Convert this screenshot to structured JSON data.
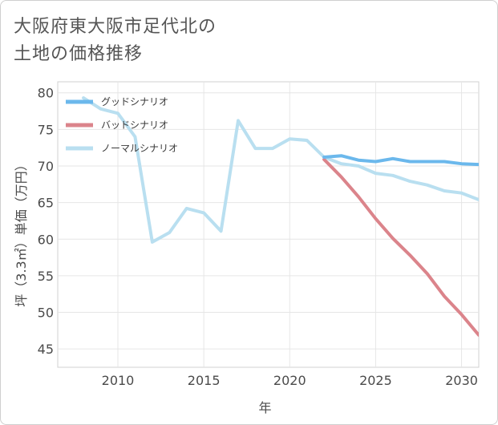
{
  "title_line1": "大阪府東大阪市足代北の",
  "title_line2": "土地の価格推移",
  "chart_data": {
    "type": "line",
    "xlabel": "年",
    "ylabel": "坪（3.3㎡）単価（万円）",
    "xlim": [
      2006.5,
      2031
    ],
    "ylim": [
      42.5,
      81.5
    ],
    "x_ticks": [
      2010,
      2015,
      2020,
      2025,
      2030
    ],
    "y_ticks": [
      45,
      50,
      55,
      60,
      65,
      70,
      75,
      80
    ],
    "legend_position": "top-left",
    "grid": true,
    "series": [
      {
        "name": "グッドシナリオ",
        "color": "#6bb8ec",
        "x": [
          2022,
          2023,
          2024,
          2025,
          2026,
          2027,
          2028,
          2029,
          2030,
          2031
        ],
        "y": [
          71.2,
          71.4,
          70.8,
          70.6,
          71.0,
          70.6,
          70.6,
          70.6,
          70.3,
          70.2
        ]
      },
      {
        "name": "バッドシナリオ",
        "color": "#db848b",
        "x": [
          2022,
          2023,
          2024,
          2025,
          2026,
          2027,
          2028,
          2029,
          2030,
          2031
        ],
        "y": [
          70.9,
          68.5,
          65.8,
          62.8,
          60.1,
          57.8,
          55.3,
          52.2,
          49.7,
          46.9
        ]
      },
      {
        "name": "ノーマルシナリオ",
        "color": "#b9dff0",
        "x": [
          2008,
          2009,
          2010,
          2011,
          2012,
          2013,
          2014,
          2015,
          2016,
          2017,
          2018,
          2019,
          2020,
          2021,
          2022,
          2023,
          2024,
          2025,
          2026,
          2027,
          2028,
          2029,
          2030,
          2031
        ],
        "y": [
          79.3,
          77.8,
          77.2,
          74.0,
          59.6,
          60.9,
          64.2,
          63.6,
          61.1,
          76.2,
          72.4,
          72.4,
          73.7,
          73.5,
          71.2,
          70.3,
          70.0,
          69.0,
          68.7,
          67.9,
          67.4,
          66.6,
          66.3,
          65.4
        ]
      }
    ]
  }
}
